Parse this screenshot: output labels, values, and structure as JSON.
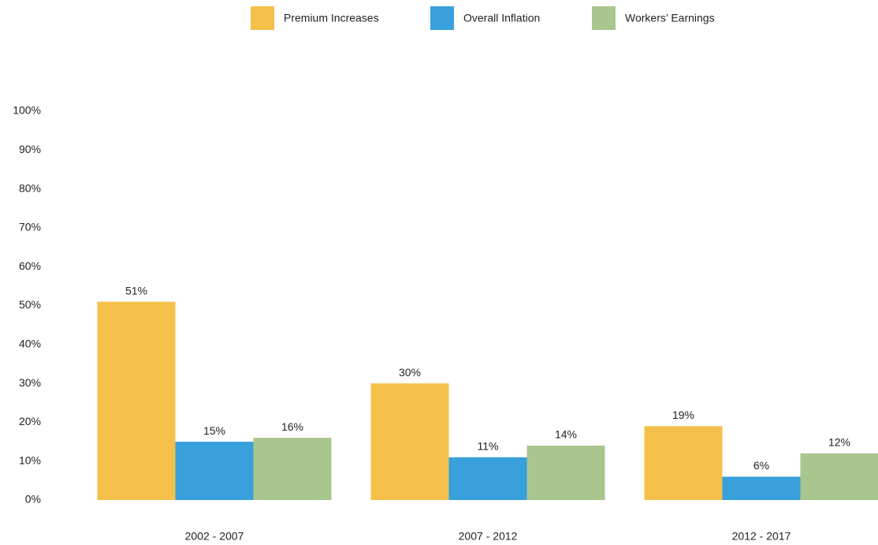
{
  "chart_data": {
    "type": "bar",
    "categories": [
      "2002 - 2007",
      "2007 - 2012",
      "2012 - 2017"
    ],
    "series": [
      {
        "name": "Premium Increases",
        "color": "#f5c04a",
        "values": [
          51,
          30,
          19
        ],
        "value_labels": [
          "51%",
          "30%",
          "19%"
        ]
      },
      {
        "name": "Overall Inflation",
        "color": "#38a0db",
        "values": [
          15,
          11,
          6
        ],
        "value_labels": [
          "15%",
          "11%",
          "6%"
        ]
      },
      {
        "name": "Workers’ Earnings",
        "color": "#a9c68e",
        "values": [
          16,
          14,
          12
        ],
        "value_labels": [
          "16%",
          "14%",
          "12%"
        ]
      }
    ],
    "ylim": [
      0,
      100
    ],
    "yticks": [
      {
        "value": 0,
        "label": "0%"
      },
      {
        "value": 10,
        "label": "10%"
      },
      {
        "value": 20,
        "label": "20%"
      },
      {
        "value": 30,
        "label": "30%"
      },
      {
        "value": 40,
        "label": "40%"
      },
      {
        "value": 50,
        "label": "50%"
      },
      {
        "value": 60,
        "label": "60%"
      },
      {
        "value": 70,
        "label": "70%"
      },
      {
        "value": 80,
        "label": "80%"
      },
      {
        "value": 90,
        "label": "90%"
      },
      {
        "value": 100,
        "label": "100%"
      }
    ],
    "legend": "top"
  }
}
